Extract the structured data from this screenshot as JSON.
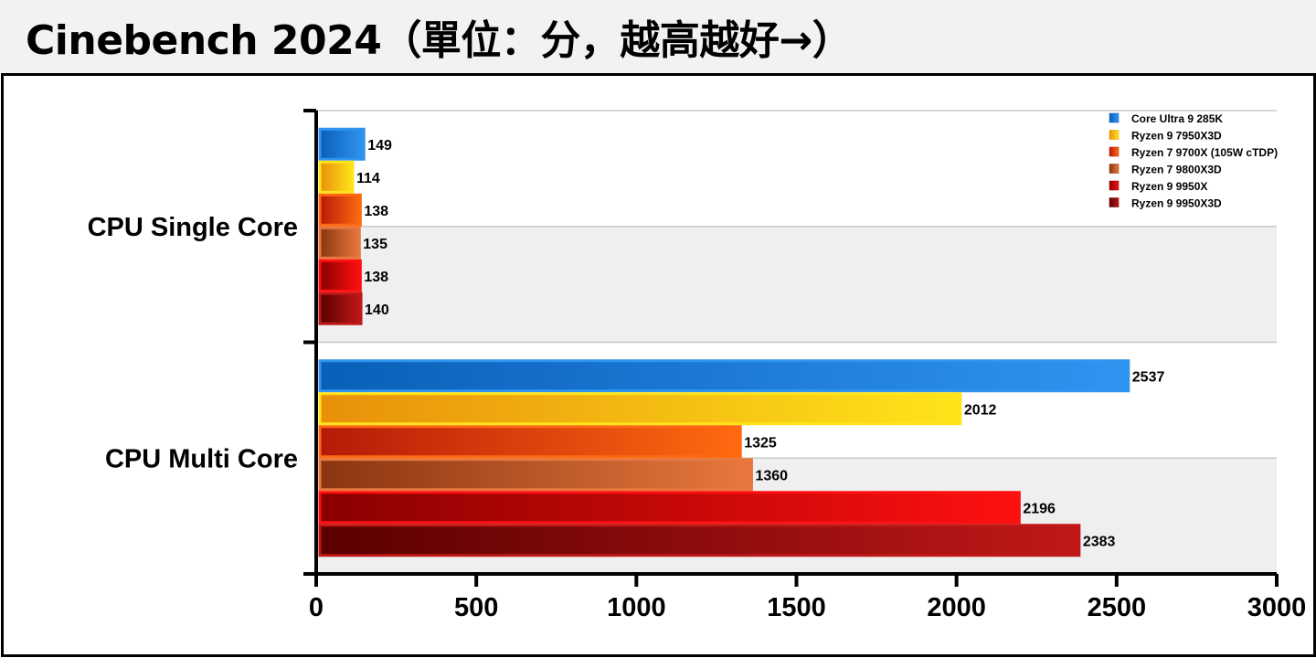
{
  "title": "Cinebench 2024（單位：分，越高越好→）",
  "colors": {
    "series": [
      [
        "#0a5fb8",
        "#2f95f0"
      ],
      [
        "#e8900a",
        "#ffe41a"
      ],
      [
        "#b51a08",
        "#ff6a10"
      ],
      [
        "#8a3510",
        "#e8783e"
      ],
      [
        "#8a0000",
        "#ff1010"
      ],
      [
        "#5a0000",
        "#c01818"
      ]
    ],
    "band": "#efefef"
  },
  "chart_data": {
    "type": "bar",
    "orientation": "horizontal",
    "categories": [
      "CPU Single Core",
      "CPU Multi Core"
    ],
    "series": [
      {
        "name": "Core Ultra 9 285K",
        "values": [
          149,
          2537
        ]
      },
      {
        "name": "Ryzen 9 7950X3D",
        "values": [
          114,
          2012
        ]
      },
      {
        "name": "Ryzen 7 9700X (105W cTDP)",
        "values": [
          138,
          1325
        ]
      },
      {
        "name": "Ryzen 7 9800X3D",
        "values": [
          135,
          1360
        ]
      },
      {
        "name": "Ryzen 9 9950X",
        "values": [
          138,
          2196
        ]
      },
      {
        "name": "Ryzen 9 9950X3D",
        "values": [
          140,
          2383
        ]
      }
    ],
    "xlim": [
      0,
      3000
    ],
    "xticks": [
      "0",
      "500",
      "1000",
      "1500",
      "2000",
      "2500",
      "3000"
    ],
    "legend": "top-right",
    "grid": true
  }
}
